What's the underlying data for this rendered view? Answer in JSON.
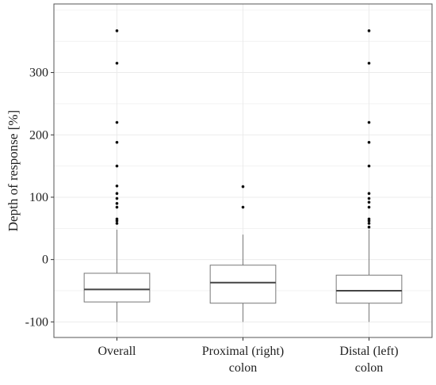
{
  "chart_data": {
    "type": "boxplot",
    "xlabel": "",
    "ylabel": "Depth of response [%]",
    "ylim": [
      -125,
      410
    ],
    "yticks": [
      -100,
      0,
      100,
      200,
      300
    ],
    "ytick_labels": [
      "-100",
      "0",
      "100",
      "200",
      "300"
    ],
    "grid": true,
    "categories": [
      {
        "label_lines": [
          "Overall"
        ]
      },
      {
        "label_lines": [
          "Proximal (right)",
          "colon"
        ]
      },
      {
        "label_lines": [
          "Distal (left)",
          "colon"
        ]
      }
    ],
    "boxes": [
      {
        "whisker_low": -100,
        "q1": -68,
        "median": -48,
        "q3": -22,
        "whisker_high": 48,
        "outliers": [
          58,
          62,
          65,
          84,
          90,
          98,
          106,
          118,
          150,
          188,
          220,
          315,
          367
        ]
      },
      {
        "whisker_low": -100,
        "q1": -70,
        "median": -37,
        "q3": -9,
        "whisker_high": 40,
        "outliers": [
          84,
          117
        ]
      },
      {
        "whisker_low": -100,
        "q1": -70,
        "median": -50,
        "q3": -25,
        "whisker_high": 48,
        "outliers": [
          52,
          58,
          62,
          65,
          84,
          92,
          98,
          106,
          150,
          188,
          220,
          315,
          367
        ]
      }
    ],
    "colors": {
      "box_fill": "#ffffff",
      "box_stroke": "#777777",
      "median": "#444444",
      "whisker": "#777777",
      "outlier": "#111111",
      "grid": "#ebebeb",
      "panel_border": "#555555"
    }
  }
}
